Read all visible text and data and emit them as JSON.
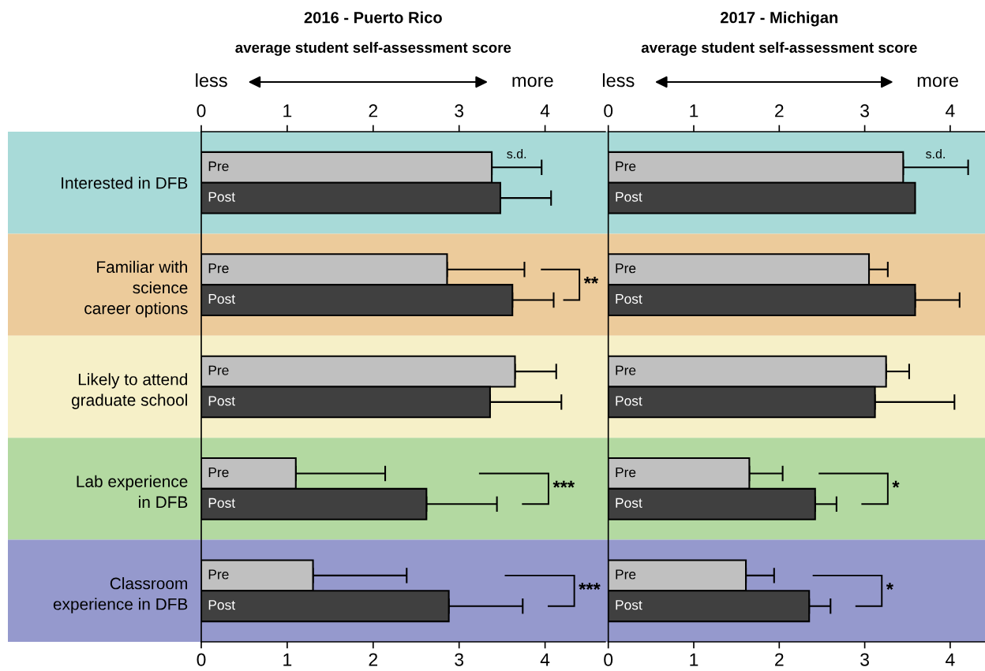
{
  "chart_data": [
    {
      "type": "bar",
      "orientation": "horizontal",
      "title": "2016 - Puerto Rico",
      "xlabel": "average student self-assessment score",
      "categories": [
        "Interested in DFB",
        "Familiar with\nscience\ncareer options",
        "Likely to attend\ngraduate school",
        "Lab experience\nin DFB",
        "Classroom\nexperience in DFB"
      ],
      "series": [
        {
          "name": "Pre",
          "color": "#c0c0c0",
          "values": [
            3.38,
            2.86,
            3.65,
            1.1,
            1.3
          ],
          "errors": [
            [
              3.38,
              3.96
            ],
            [
              2.86,
              3.76
            ],
            [
              3.65,
              4.13
            ],
            [
              1.1,
              2.14
            ],
            [
              1.3,
              2.39
            ]
          ]
        },
        {
          "name": "Post",
          "color": "#404040",
          "values": [
            3.48,
            3.62,
            3.36,
            2.62,
            2.88
          ],
          "errors": [
            [
              3.48,
              4.07
            ],
            [
              3.62,
              4.1
            ],
            [
              3.36,
              4.19
            ],
            [
              2.62,
              3.44
            ],
            [
              2.88,
              3.74
            ]
          ]
        }
      ],
      "xlim": [
        0,
        4.7
      ],
      "xticks": [
        0,
        1,
        2,
        3,
        4
      ],
      "x2lim": [
        0,
        4.7
      ],
      "x2ticks": [
        0,
        1,
        2,
        3,
        4
      ],
      "annotations": [
        "less",
        "more",
        "s.d."
      ],
      "bands": [
        {
          "axis": "y",
          "from": "Interested in DFB",
          "to": "Interested in DFB",
          "color": "#a8dad8"
        },
        {
          "axis": "y",
          "from": "Familiar with\nscience\ncareer options",
          "to": "Familiar with\nscience\ncareer options",
          "color": "#eccb9b",
          "label": "**"
        },
        {
          "axis": "y",
          "from": "Likely to attend\ngraduate school",
          "to": "Likely to attend\ngraduate school",
          "color": "#f6f0c8"
        },
        {
          "axis": "y",
          "from": "Lab experience\nin DFB",
          "to": "Lab experience\nin DFB",
          "color": "#b3d9a1",
          "label": "***"
        },
        {
          "axis": "y",
          "from": "Classroom\nexperience in DFB",
          "to": "Classroom\nexperience in DFB",
          "color": "#9599cd",
          "label": "***"
        }
      ]
    },
    {
      "type": "bar",
      "orientation": "horizontal",
      "title": "2017 - Michigan",
      "xlabel": "average student self-assessment score",
      "categories": [
        "Interested in DFB",
        "Familiar with\nscience\ncareer options",
        "Likely to attend\ngraduate school",
        "Lab experience\nin DFB",
        "Classroom\nexperience in DFB"
      ],
      "tick_labels": "x",
      "series": [
        {
          "name": "Pre",
          "color": "#c0c0c0",
          "values": [
            3.45,
            3.05,
            3.25,
            1.65,
            1.61
          ],
          "errors": [
            [
              3.45,
              4.21
            ],
            [
              3.05,
              3.27
            ],
            [
              3.25,
              3.52
            ],
            [
              1.65,
              2.04
            ],
            [
              1.61,
              1.94
            ]
          ]
        },
        {
          "name": "Post",
          "color": "#404040",
          "values": [
            3.59,
            3.59,
            3.12,
            2.42,
            2.35
          ],
          "errors": [
            null,
            [
              3.59,
              4.11
            ],
            [
              3.12,
              4.05
            ],
            [
              2.42,
              2.67
            ],
            [
              2.35,
              2.6
            ]
          ]
        }
      ],
      "xlim": [
        0,
        4.41
      ],
      "xticks": [
        0,
        1,
        2,
        3,
        4
      ],
      "x2lim": [
        0,
        4.41
      ],
      "x2ticks": [
        0,
        1,
        2,
        3,
        4
      ],
      "annotations": [
        "less",
        "more",
        "s.d."
      ],
      "bands": [
        {
          "axis": "y",
          "from": "Interested in DFB",
          "to": "Interested in DFB",
          "color": "#a8dad8"
        },
        {
          "axis": "y",
          "from": "Familiar with\nscience\ncareer options",
          "to": "Familiar with\nscience\ncareer options",
          "color": "#eccb9b"
        },
        {
          "axis": "y",
          "from": "Likely to attend\ngraduate school",
          "to": "Likely to attend\ngraduate school",
          "color": "#f6f0c8"
        },
        {
          "axis": "y",
          "from": "Lab experience\nin DFB",
          "to": "Lab experience\nin DFB",
          "color": "#b3d9a1",
          "label": "*"
        },
        {
          "axis": "y",
          "from": "Classroom\nexperience in DFB",
          "to": "Classroom\nexperience in DFB",
          "color": "#9599cd",
          "label": "*"
        }
      ]
    }
  ]
}
